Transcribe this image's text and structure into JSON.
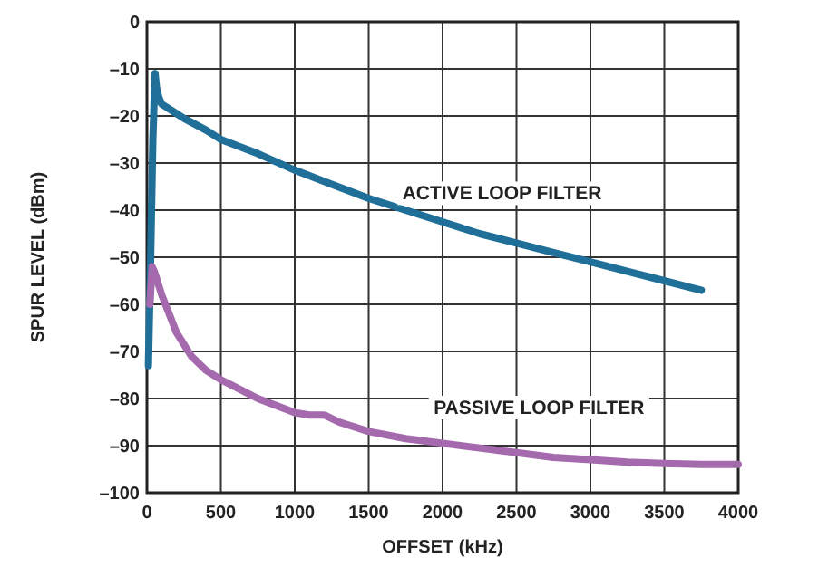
{
  "chart_data": {
    "type": "line",
    "xlabel": "OFFSET (kHz)",
    "ylabel": "SPUR LEVEL (dBm)",
    "xlim": [
      0,
      4000
    ],
    "ylim": [
      -100,
      0
    ],
    "xticks": [
      0,
      500,
      1000,
      1500,
      2000,
      2500,
      3000,
      3500,
      4000
    ],
    "yticks": [
      {
        "value": 0,
        "label": "0"
      },
      {
        "value": -10,
        "label": "–10"
      },
      {
        "value": -20,
        "label": "–20"
      },
      {
        "value": -30,
        "label": "–30"
      },
      {
        "value": -40,
        "label": "–40"
      },
      {
        "value": -50,
        "label": "–50"
      },
      {
        "value": -60,
        "label": "–60"
      },
      {
        "value": -70,
        "label": "–70"
      },
      {
        "value": -80,
        "label": "–80"
      },
      {
        "value": -90,
        "label": "–90"
      },
      {
        "value": -100,
        "label": "–100"
      }
    ],
    "grid": true,
    "legend": false,
    "marker": "none",
    "line_style": "solid",
    "series": [
      {
        "name": "ACTIVE LOOP FILTER",
        "color": "#1f6f99",
        "x": [
          10,
          25,
          40,
          55,
          65,
          80,
          100,
          150,
          250,
          400,
          500,
          750,
          1000,
          1250,
          1500,
          1750,
          2000,
          2250,
          2500,
          2750,
          3000,
          3250,
          3500,
          3750
        ],
        "values": [
          -73,
          -50,
          -25,
          -11,
          -14,
          -16,
          -17.5,
          -18.5,
          -20.5,
          -23,
          -25,
          -28,
          -31.5,
          -34.5,
          -37.5,
          -40,
          -42.5,
          -45,
          -47,
          -49,
          -51,
          -53,
          -55,
          -57
        ]
      },
      {
        "name": "PASSIVE LOOP FILTER",
        "color": "#a56aae",
        "x": [
          20,
          35,
          50,
          70,
          100,
          150,
          200,
          300,
          400,
          500,
          750,
          1000,
          1100,
          1200,
          1300,
          1500,
          1750,
          2000,
          2250,
          2500,
          2750,
          3000,
          3250,
          3500,
          3750,
          4000
        ],
        "values": [
          -60,
          -52,
          -53,
          -55,
          -58,
          -62,
          -66,
          -71,
          -74,
          -76,
          -80,
          -83,
          -83.5,
          -83.5,
          -85,
          -87,
          -88.5,
          -89.5,
          -90.5,
          -91.5,
          -92.5,
          -93,
          -93.5,
          -93.8,
          -94,
          -94
        ]
      }
    ]
  }
}
